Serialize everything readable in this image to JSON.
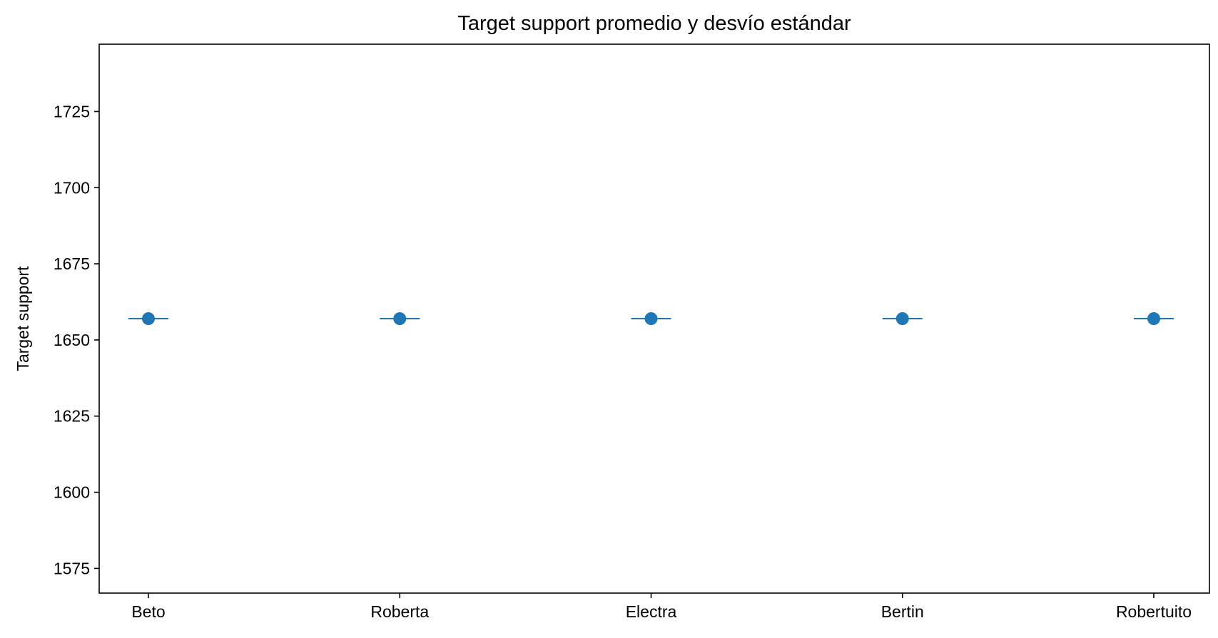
{
  "chart_data": {
    "type": "scatter",
    "title": "Target support promedio y desvío estándar",
    "xlabel": "",
    "ylabel": "Target support",
    "categories": [
      "Beto",
      "Roberta",
      "Electra",
      "Bertin",
      "Robertuito"
    ],
    "series": [
      {
        "values": [
          1657,
          1657,
          1657,
          1657,
          1657
        ],
        "error": [
          0,
          0,
          0,
          0,
          0
        ]
      }
    ],
    "yticks": [
      1575,
      1600,
      1625,
      1650,
      1675,
      1700,
      1725
    ],
    "ylim": [
      1566.9,
      1747.1
    ],
    "grid": false,
    "colors": {
      "series": "#1f77b4",
      "axis": "#000000"
    }
  }
}
